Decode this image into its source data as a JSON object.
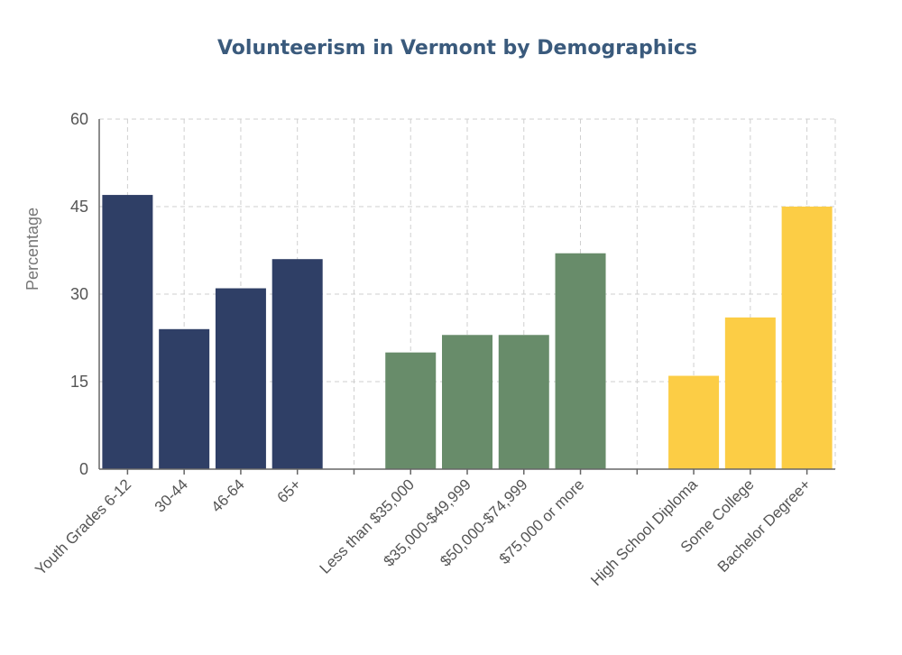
{
  "chart_data": {
    "type": "bar",
    "title": "Volunteerism in Vermont by Demographics",
    "ylabel": "Percentage",
    "xlabel": "",
    "ylim": [
      0,
      60
    ],
    "yticks": [
      0,
      15,
      30,
      45,
      60
    ],
    "grid": true,
    "colors": {
      "title": "#3a5a7c",
      "age": "#2f3f66",
      "income": "#688c6a",
      "education": "#fccd45"
    },
    "categories": [
      "Youth Grades 6-12",
      "30-44",
      "46-64",
      "65+",
      "",
      "Less than $35,000",
      "$35,000-$49,999",
      "$50,000-$74,999",
      "$75,000 or more",
      "",
      "High School Diploma",
      "Some College",
      "Bachelor Degree+"
    ],
    "values": [
      47,
      24,
      31,
      36,
      null,
      20,
      23,
      23,
      37,
      null,
      16,
      26,
      45
    ],
    "groups": [
      "age",
      "age",
      "age",
      "age",
      null,
      "income",
      "income",
      "income",
      "income",
      null,
      "education",
      "education",
      "education"
    ]
  }
}
